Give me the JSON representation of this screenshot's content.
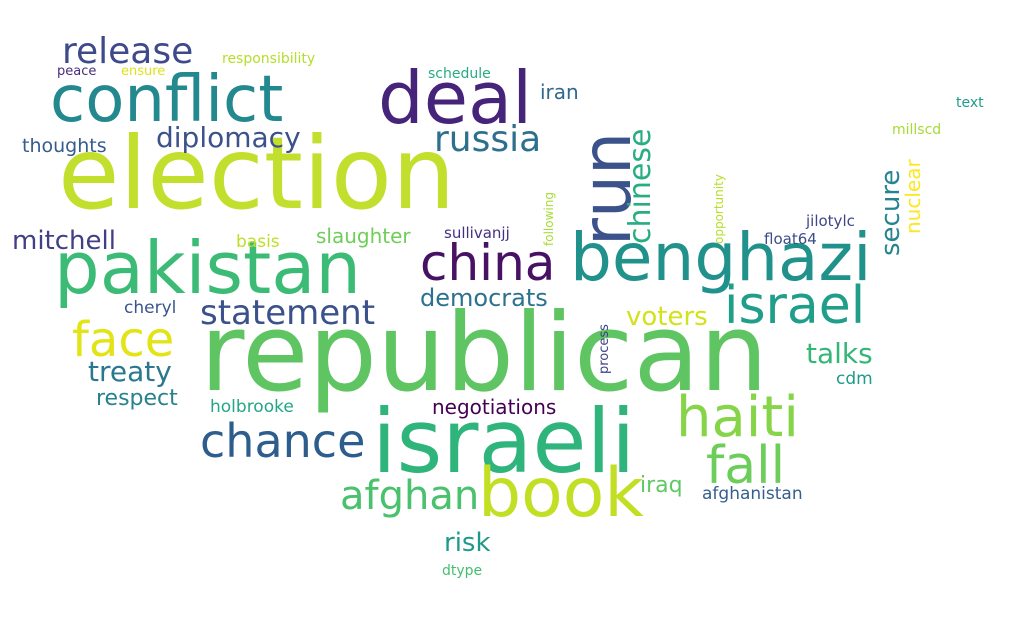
{
  "words": [
    {
      "text": "election",
      "color": "#c3df2d"
    },
    {
      "text": "republican",
      "color": "#5fc563"
    },
    {
      "text": "pakistan",
      "color": "#3bbb75"
    },
    {
      "text": "benghazi",
      "color": "#21918c"
    },
    {
      "text": "israeli",
      "color": "#2fb47c"
    },
    {
      "text": "conflict",
      "color": "#23898e"
    },
    {
      "text": "deal",
      "color": "#46247a"
    },
    {
      "text": "run",
      "color": "#3b528b"
    },
    {
      "text": "book",
      "color": "#c2df23"
    },
    {
      "text": "china",
      "color": "#471164"
    },
    {
      "text": "israel",
      "color": "#1f9e89"
    },
    {
      "text": "haiti",
      "color": "#86d549"
    },
    {
      "text": "chance",
      "color": "#2c5d8c"
    },
    {
      "text": "fall",
      "color": "#6ccd5a"
    },
    {
      "text": "face",
      "color": "#e2e418"
    },
    {
      "text": "release",
      "color": "#3e4a89"
    },
    {
      "text": "statement",
      "color": "#3b518b"
    },
    {
      "text": "afghan",
      "color": "#4ac16d"
    },
    {
      "text": "russia",
      "color": "#2d708e"
    },
    {
      "text": "diplomacy",
      "color": "#3b528b"
    },
    {
      "text": "mitchell",
      "color": "#433e85"
    },
    {
      "text": "chinese",
      "color": "#27ad81"
    },
    {
      "text": "secure",
      "color": "#25848e"
    },
    {
      "text": "democrats",
      "color": "#2c728e"
    },
    {
      "text": "treaty",
      "color": "#2a788e"
    },
    {
      "text": "talks",
      "color": "#34b679"
    },
    {
      "text": "voters",
      "color": "#d2e21b"
    },
    {
      "text": "risk",
      "color": "#1f9a8a"
    },
    {
      "text": "respect",
      "color": "#26828e"
    },
    {
      "text": "negotiations",
      "color": "#440154"
    },
    {
      "text": "slaughter",
      "color": "#6ece58"
    },
    {
      "text": "nuclear",
      "color": "#fde725"
    },
    {
      "text": "iran",
      "color": "#31688e"
    },
    {
      "text": "thoughts",
      "color": "#365c8d"
    },
    {
      "text": "iraq",
      "color": "#5ec962"
    },
    {
      "text": "afghanistan",
      "color": "#355f8d"
    },
    {
      "text": "holbrooke",
      "color": "#22a785"
    },
    {
      "text": "cheryl",
      "color": "#39558c"
    },
    {
      "text": "basis",
      "color": "#bddf26"
    },
    {
      "text": "cdm",
      "color": "#1e9b8a"
    },
    {
      "text": "sullivanjj",
      "color": "#46307e"
    },
    {
      "text": "jilotylc",
      "color": "#404588"
    },
    {
      "text": "float64",
      "color": "#3d4d8a"
    },
    {
      "text": "schedule",
      "color": "#25ac82"
    },
    {
      "text": "responsibility",
      "color": "#b5de2b"
    },
    {
      "text": "peace",
      "color": "#472d7b"
    },
    {
      "text": "ensure",
      "color": "#dde318"
    },
    {
      "text": "millscd",
      "color": "#a5db36"
    },
    {
      "text": "text",
      "color": "#1f9e89"
    },
    {
      "text": "following",
      "color": "#a8db34"
    },
    {
      "text": "opportunity",
      "color": "#b8de29"
    },
    {
      "text": "process",
      "color": "#414487"
    },
    {
      "text": "dtype",
      "color": "#44bf70"
    }
  ]
}
